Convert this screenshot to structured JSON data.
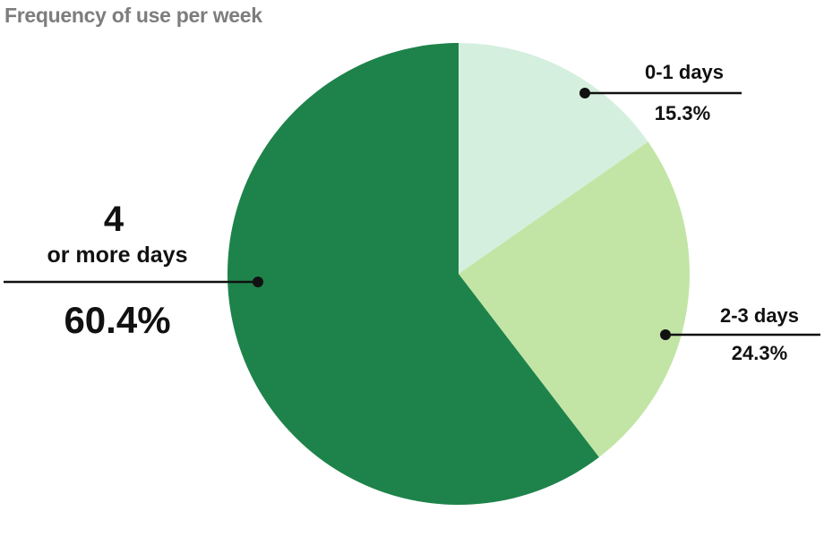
{
  "title": "Frequency of use per week",
  "chart_data": {
    "type": "pie",
    "title": "Frequency of use per week",
    "slices": [
      {
        "label": "0-1 days",
        "value": 15.3,
        "value_label": "15.3%",
        "color": "#d5efdf"
      },
      {
        "label": "2-3 days",
        "value": 24.3,
        "value_label": "24.3%",
        "color": "#c2e5a5"
      },
      {
        "label_line1": "4",
        "label_line2": "or more days",
        "value": 60.4,
        "value_label": "60.4%",
        "color": "#1e834a"
      }
    ],
    "start_angle": "top (12 o'clock)",
    "direction": "clockwise",
    "legend": "none (callout labels)"
  }
}
